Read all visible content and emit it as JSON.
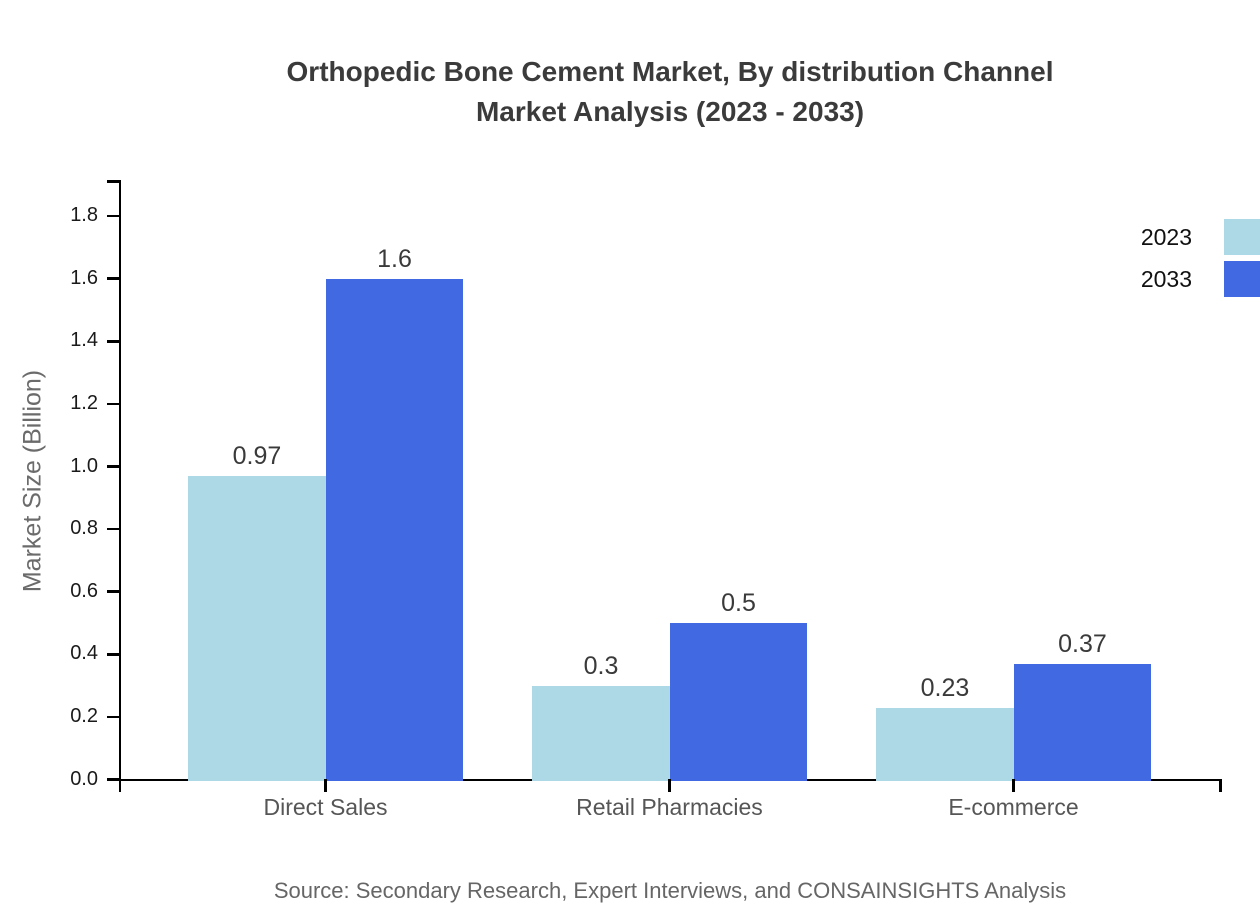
{
  "title": {
    "line1": "Orthopedic Bone Cement Market, By distribution Channel",
    "line2": "Market Analysis (2023 - 2033)"
  },
  "source": {
    "text": "Source: Secondary Research, Expert Interviews, and CONSAINSIGHTS Analysis"
  },
  "chart_data": {
    "type": "bar",
    "title": "Orthopedic Bone Cement Market, By distribution Channel Market Analysis (2023 - 2033)",
    "xlabel": "",
    "ylabel": "Market Size (Billion)",
    "categories": [
      "Direct Sales",
      "Retail Pharmacies",
      "E-commerce"
    ],
    "series": [
      {
        "name": "2023",
        "color": "#ADD8E6",
        "values": [
          0.97,
          0.3,
          0.23
        ],
        "labels": [
          "0.97",
          "0.3",
          "0.23"
        ]
      },
      {
        "name": "2033",
        "color": "#4169E1",
        "values": [
          1.6,
          0.5,
          0.37
        ],
        "labels": [
          "1.6",
          "0.5",
          "0.37"
        ]
      }
    ],
    "yticks": [
      0.0,
      0.2,
      0.4,
      0.6,
      0.8,
      1.0,
      1.2,
      1.4,
      1.6,
      1.8
    ],
    "ytick_labels": [
      "0.0",
      "0.2",
      "0.4",
      "0.6",
      "0.8",
      "1.0",
      "1.2",
      "1.4",
      "1.6",
      "1.8"
    ],
    "ylim": [
      0,
      1.9
    ],
    "grid": false,
    "legend_position": "top-right",
    "axis_color": "#000000"
  }
}
